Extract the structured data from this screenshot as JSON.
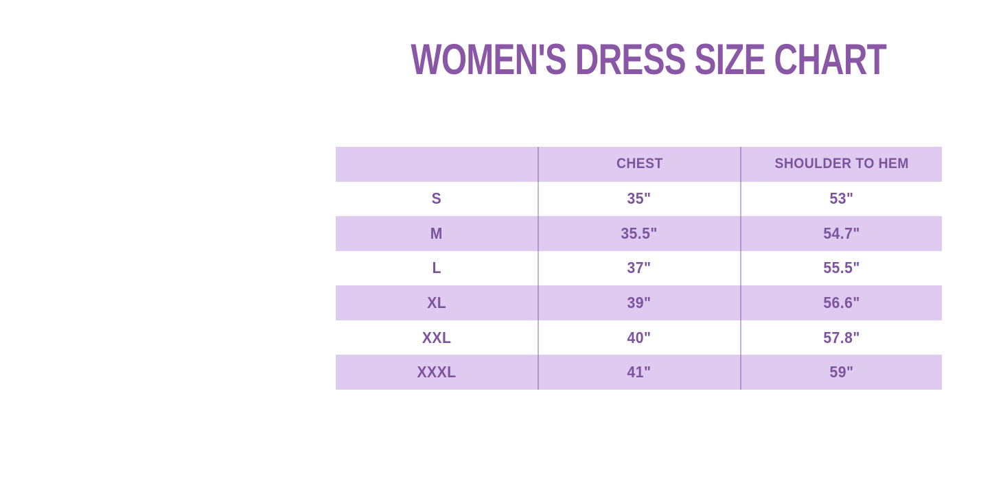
{
  "title": "WOMEN'S DRESS SIZE CHART",
  "chart_data": {
    "type": "table",
    "title": "WOMEN'S DRESS SIZE CHART",
    "columns": [
      "",
      "CHEST",
      "SHOULDER TO HEM"
    ],
    "rows": [
      [
        "S",
        "35\"",
        "53\""
      ],
      [
        "M",
        "35.5\"",
        "54.7\""
      ],
      [
        "L",
        "37\"",
        "55.5\""
      ],
      [
        "XL",
        "39\"",
        "56.6\""
      ],
      [
        "XXL",
        "40\"",
        "57.8\""
      ],
      [
        "XXXL",
        "41\"",
        "59\""
      ]
    ],
    "layout_hints": {
      "striped_rows": true,
      "header_background": "lavender",
      "stripe_order": [
        "lavender",
        "white"
      ],
      "vertical_dividers_only": true
    }
  },
  "colors": {
    "title-purple": "#8a57a6",
    "text-purple": "#7d539f",
    "row-lavender": "#e0cbf0",
    "row-white": "#ffffff"
  }
}
